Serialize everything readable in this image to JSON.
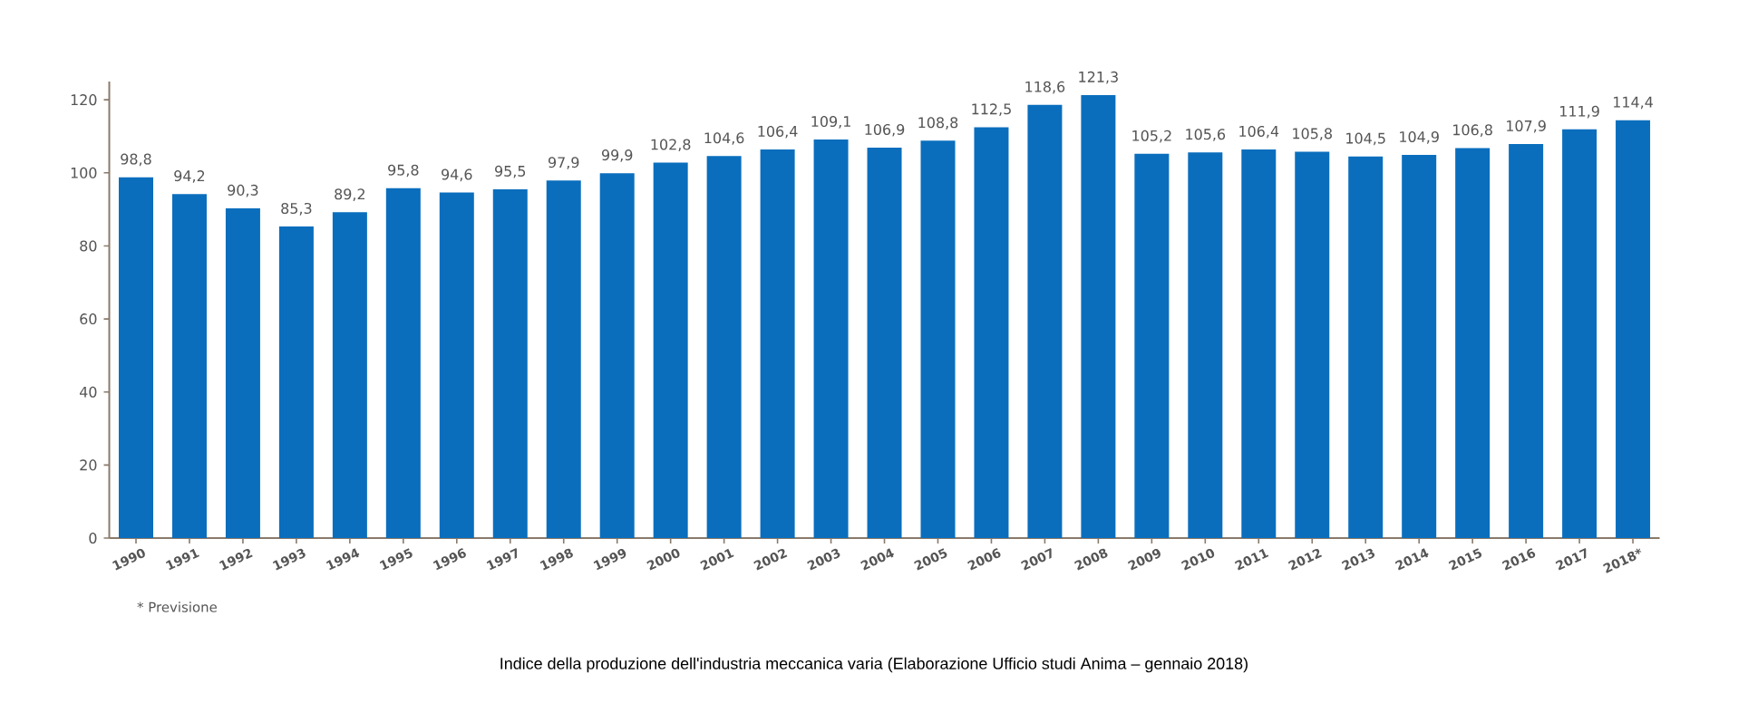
{
  "chart_data": {
    "type": "bar",
    "categories": [
      "1990",
      "1991",
      "1992",
      "1993",
      "1994",
      "1995",
      "1996",
      "1997",
      "1998",
      "1999",
      "2000",
      "2001",
      "2002",
      "2003",
      "2004",
      "2005",
      "2006",
      "2007",
      "2008",
      "2009",
      "2010",
      "2011",
      "2012",
      "2013",
      "2014",
      "2015",
      "2016",
      "2017",
      "2018*"
    ],
    "values": [
      98.8,
      94.2,
      90.3,
      85.3,
      89.2,
      95.8,
      94.6,
      95.5,
      97.9,
      99.9,
      102.8,
      104.6,
      106.4,
      109.1,
      106.9,
      108.8,
      112.5,
      118.6,
      121.3,
      105.2,
      105.6,
      106.4,
      105.8,
      104.5,
      104.9,
      106.8,
      107.9,
      111.9,
      114.4
    ],
    "value_labels": [
      "98,8",
      "94,2",
      "90,3",
      "85,3",
      "89,2",
      "95,8",
      "94,6",
      "95,5",
      "97,9",
      "99,9",
      "102,8",
      "104,6",
      "106,4",
      "109,1",
      "106,9",
      "108,8",
      "112,5",
      "118,6",
      "121,3",
      "105,2",
      "105,6",
      "106,4",
      "105,8",
      "104,5",
      "104,9",
      "106,8",
      "107,9",
      "111,9",
      "114,4"
    ],
    "color": "#0a6ebd",
    "ylim": [
      0,
      125
    ],
    "yticks": [
      0,
      20,
      40,
      60,
      80,
      100,
      120
    ],
    "annotations": [
      "* Previsione",
      "Indice della produzione dell'industria meccanica varia (Elaborazione Ufficio studi Anima – gennaio 2018)"
    ]
  }
}
